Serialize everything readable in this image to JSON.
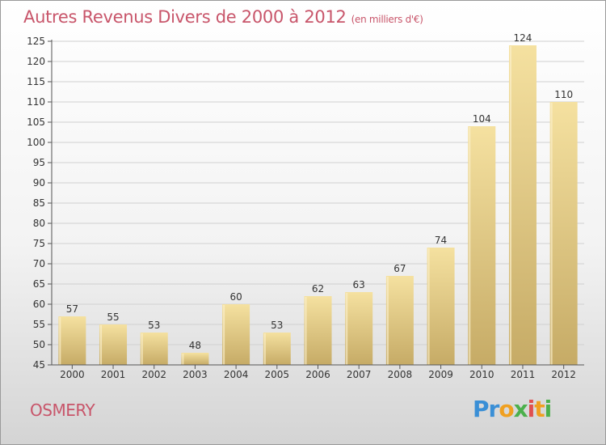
{
  "title": "Autres Revenus Divers de 2000 à 2012",
  "title_unit": "(en milliers d'€)",
  "commune": "OSMERY",
  "logo": {
    "text": "Proxiti",
    "colors": [
      "#3a8fd6",
      "#f0a020",
      "#4cb04c",
      "#e05050"
    ]
  },
  "colors": {
    "title": "#c8556a",
    "bar_top": "#f5e1a0",
    "bar_bottom": "#c6ab66",
    "grid": "#d0d0d0"
  },
  "chart_data": {
    "type": "bar",
    "categories": [
      "2000",
      "2001",
      "2002",
      "2003",
      "2004",
      "2005",
      "2006",
      "2007",
      "2008",
      "2009",
      "2010",
      "2011",
      "2012"
    ],
    "values": [
      57,
      55,
      53,
      48,
      60,
      53,
      62,
      63,
      67,
      74,
      104,
      124,
      110
    ],
    "ylim": [
      45,
      125
    ],
    "yticks": [
      45,
      50,
      55,
      60,
      65,
      70,
      75,
      80,
      85,
      90,
      95,
      100,
      105,
      110,
      115,
      120,
      125
    ],
    "grid": true,
    "data_labels": true
  }
}
